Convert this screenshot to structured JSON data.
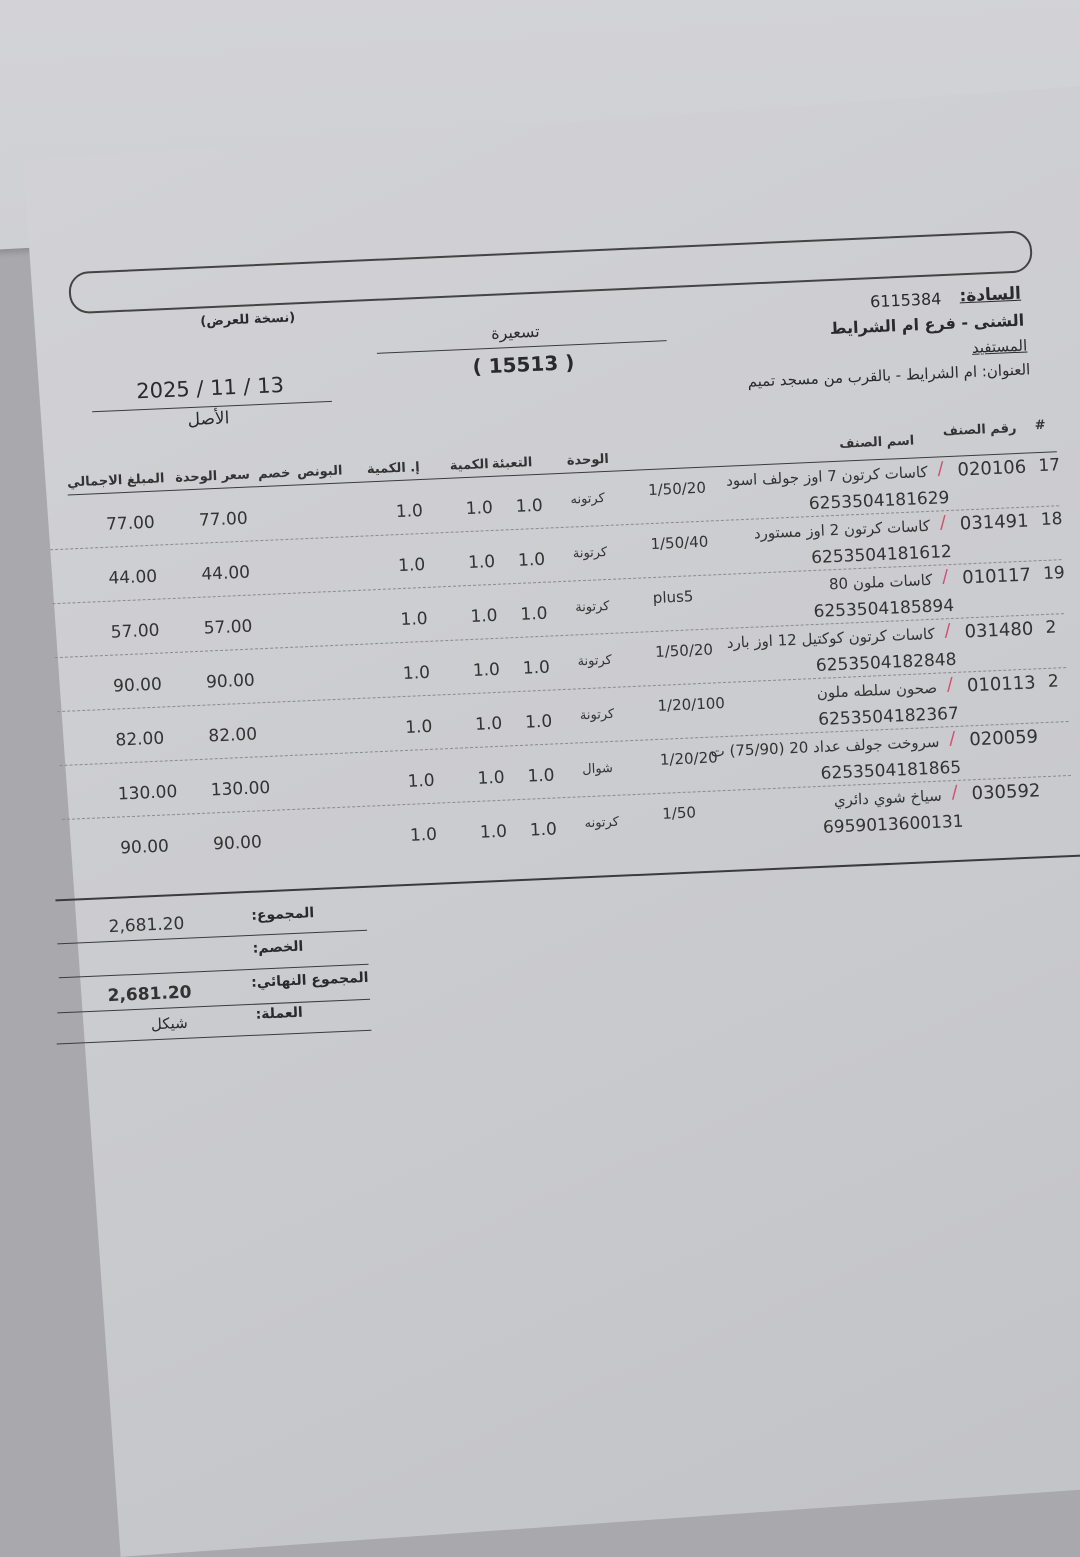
{
  "header": {
    "copy_label": "(نسخة للعرض)",
    "doc_type": "تسعيرة",
    "doc_number": "( 15513 )",
    "date": "2025 / 11 / 13",
    "original_label": "الأصل",
    "customer_label": "السادة:",
    "customer_id": "6115384",
    "customer_name": "الشنى - فرع ام الشرايط",
    "beneficiary_label": "المستفيد",
    "address": "العنوان: ام الشرايط - بالقرب من مسجد تميم"
  },
  "columns": {
    "num": "#",
    "code": "رقم الصنف",
    "name": "اسم الصنف",
    "unit": "الوحدة",
    "packing": "التعبئة",
    "qty": "الكمية",
    "total_qty": "إ. الكمية",
    "bonus": "البونص",
    "discount": "خصم",
    "unit_price": "سعر الوحدة",
    "total": "المبلغ الاجمالي"
  },
  "items": [
    {
      "num": "17",
      "code": "020106",
      "name": "كاسات كرتون 7 اوز جولف اسود",
      "pack_info": "1/50/20",
      "barcode": "6253504181629",
      "unit": "كرتونه",
      "packing": "1.0",
      "qty": "1.0",
      "total_qty": "1.0",
      "unit_price": "77.00",
      "total": "77.00"
    },
    {
      "num": "18",
      "code": "031491",
      "name": "كاسات كرتون 2 اوز مستورد",
      "pack_info": "1/50/40",
      "barcode": "6253504181612",
      "unit": "كرتونة",
      "packing": "1.0",
      "qty": "1.0",
      "total_qty": "1.0",
      "unit_price": "44.00",
      "total": "44.00"
    },
    {
      "num": "19",
      "code": "010117",
      "name": "كاسات ملون 80",
      "pack_info": "plus5",
      "barcode": "6253504185894",
      "unit": "كرتونة",
      "packing": "1.0",
      "qty": "1.0",
      "total_qty": "1.0",
      "unit_price": "57.00",
      "total": "57.00"
    },
    {
      "num": "2",
      "code": "031480",
      "name": "كاسات كرتون كوكتيل 12 اوز بارد",
      "pack_info": "1/50/20",
      "barcode": "6253504182848",
      "unit": "كرتونة",
      "packing": "1.0",
      "qty": "1.0",
      "total_qty": "1.0",
      "unit_price": "90.00",
      "total": "90.00"
    },
    {
      "num": "2",
      "code": "010113",
      "name": "صحون سلطه ملون",
      "pack_info": "1/20/100",
      "barcode": "6253504182367",
      "unit": "كرتونة",
      "packing": "1.0",
      "qty": "1.0",
      "total_qty": "1.0",
      "unit_price": "82.00",
      "total": "82.00"
    },
    {
      "num": "",
      "code": "020059",
      "name": "سروخت جولف عداد 20 (75/90) ت",
      "pack_info": "1/20/20",
      "barcode": "6253504181865",
      "unit": "شوال",
      "packing": "1.0",
      "qty": "1.0",
      "total_qty": "1.0",
      "unit_price": "130.00",
      "total": "130.00"
    },
    {
      "num": "",
      "code": "030592",
      "name": "سياخ شوي دائري",
      "pack_info": "1/50",
      "barcode": "6959013600131",
      "unit": "كرتونه",
      "packing": "1.0",
      "qty": "1.0",
      "total_qty": "1.0",
      "unit_price": "90.00",
      "total": "90.00"
    }
  ],
  "summary": {
    "subtotal_label": "المجموع:",
    "subtotal": "2,681.20",
    "discount_label": "الخصم:",
    "final_label": "المجموع النهائي:",
    "final_total": "2,681.20",
    "currency_label": "العملة:",
    "currency": "شيكل"
  },
  "colors": {
    "paper": "#cbcbcf",
    "ink": "#2a2a2e",
    "check_mark": "#d05070"
  }
}
